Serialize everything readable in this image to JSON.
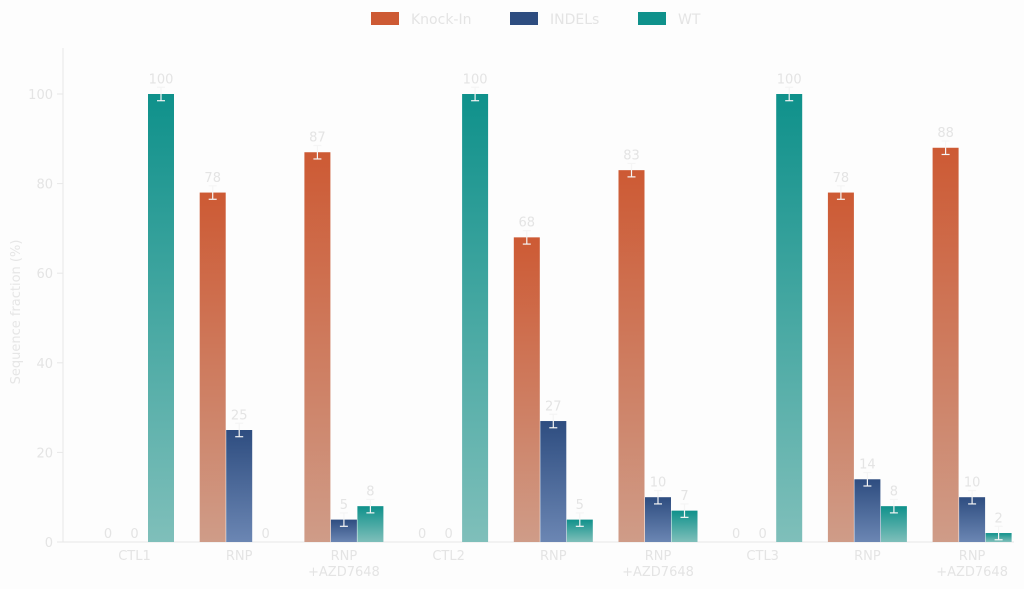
{
  "chart_data": {
    "type": "bar",
    "title": "",
    "xlabel": "",
    "ylabel": "Sequence fraction (%)",
    "ylim": [
      0,
      110
    ],
    "yticks": [
      0,
      20,
      40,
      60,
      80,
      100
    ],
    "grid": false,
    "legend_position": "top-center",
    "categories": [
      [
        "CTL1"
      ],
      [
        "RNP"
      ],
      [
        "RNP",
        "+AZD7648"
      ],
      [
        "CTL2"
      ],
      [
        "RNP"
      ],
      [
        "RNP",
        "+AZD7648"
      ],
      [
        "CTL3"
      ],
      [
        "RNP"
      ],
      [
        "RNP",
        "+AZD7648"
      ]
    ],
    "series": [
      {
        "name": "Knock-In",
        "color_top": "#cd5a34",
        "color_bottom": "#cf9c88",
        "values": [
          0,
          78,
          87,
          0,
          68,
          83,
          0,
          78,
          88
        ],
        "errors": [
          0,
          1.5,
          1.5,
          0,
          1.5,
          1.5,
          0,
          1.5,
          1.5
        ]
      },
      {
        "name": "INDELs",
        "color_top": "#2e4d80",
        "color_bottom": "#6b86b3",
        "values": [
          0,
          25,
          5,
          0,
          27,
          10,
          0,
          14,
          10
        ],
        "errors": [
          0,
          1.5,
          1.5,
          0,
          1.5,
          1.5,
          0,
          1.5,
          1.5
        ]
      },
      {
        "name": "WT",
        "color_top": "#0f918b",
        "color_bottom": "#7fbfba",
        "values": [
          100,
          0,
          8,
          100,
          5,
          7,
          100,
          8,
          2
        ],
        "errors": [
          1.5,
          0,
          1.5,
          1.5,
          1.5,
          1.5,
          1.5,
          1.5,
          1.5
        ]
      }
    ]
  }
}
